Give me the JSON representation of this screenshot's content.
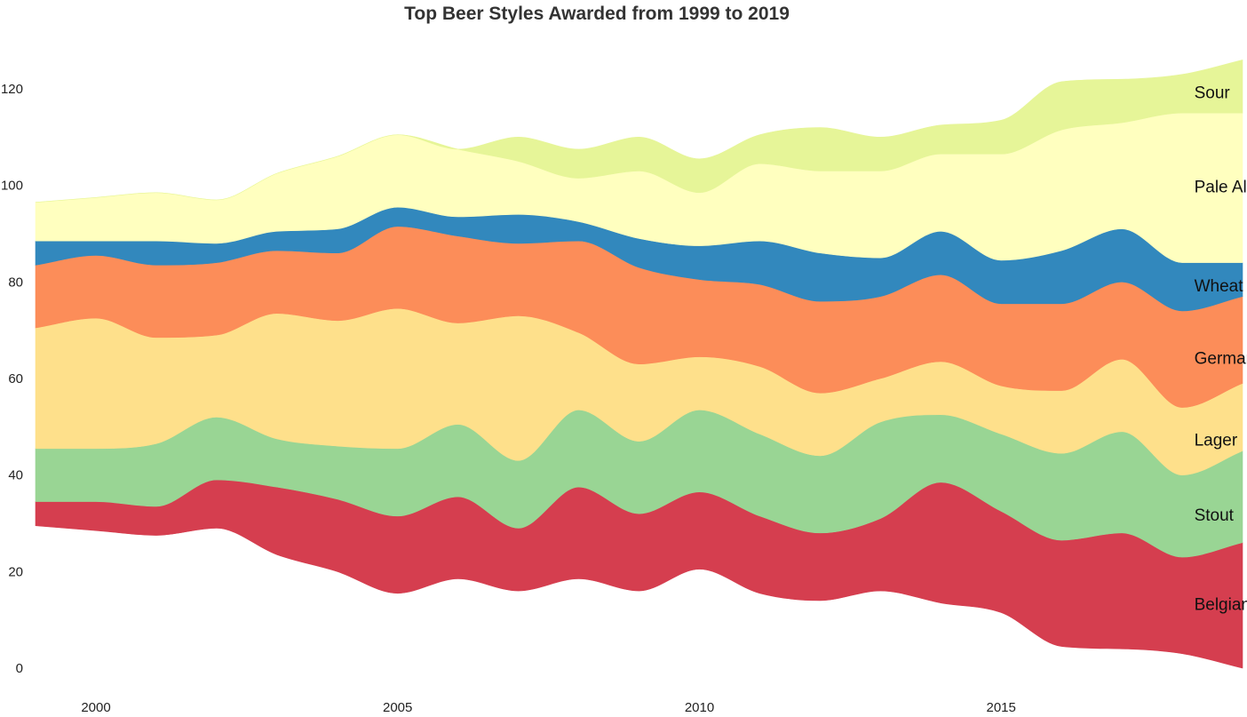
{
  "chart_data": {
    "type": "area",
    "stacked": true,
    "smoothed": true,
    "title": "Top Beer Styles Awarded from 1999 to 2019",
    "xlabel": "",
    "ylabel": "",
    "x": [
      1999,
      2000,
      2001,
      2002,
      2003,
      2004,
      2005,
      2006,
      2007,
      2008,
      2009,
      2010,
      2011,
      2012,
      2013,
      2014,
      2015,
      2016,
      2017,
      2018,
      2019
    ],
    "xlim": [
      1999,
      2019
    ],
    "ylim": [
      0,
      127
    ],
    "x_ticks": [
      2000,
      2005,
      2010,
      2015
    ],
    "y_ticks": [
      0,
      20,
      40,
      60,
      80,
      100,
      120
    ],
    "grid": false,
    "legend": "labels inside areas at right edge",
    "baseline": [
      29.5,
      28.5,
      27.5,
      29,
      23.5,
      20,
      15.5,
      18.5,
      16,
      18.5,
      16,
      20.5,
      15.5,
      14,
      16,
      13.5,
      11.5,
      4.5,
      4,
      3,
      0
    ],
    "series": [
      {
        "name": "Belgian",
        "color": "#d53e4f",
        "values": [
          5,
          6,
          6,
          10,
          14,
          15,
          16,
          17,
          13,
          19,
          16,
          16,
          16,
          14,
          15,
          25,
          21,
          22,
          24,
          20,
          26
        ]
      },
      {
        "name": "Stout",
        "color": "#99d594",
        "values": [
          11,
          11,
          13,
          13,
          10,
          11,
          14,
          15,
          14,
          16,
          15,
          17,
          17,
          16,
          20,
          14,
          16,
          18,
          21,
          17,
          19
        ]
      },
      {
        "name": "Lager",
        "color": "#fee08b",
        "values": [
          25,
          27,
          22,
          17,
          26,
          26,
          29,
          21,
          30,
          16,
          16,
          11,
          14,
          13,
          9,
          11,
          10,
          13,
          15,
          14,
          14
        ]
      },
      {
        "name": "German",
        "color": "#fc8d59",
        "values": [
          13,
          13,
          15,
          15,
          13,
          14,
          17,
          18,
          15,
          19,
          20,
          16,
          17,
          19,
          17,
          18,
          17,
          18,
          16,
          20,
          18
        ]
      },
      {
        "name": "Wheat",
        "color": "#3288bd",
        "values": [
          5,
          3,
          5,
          4,
          4,
          5,
          4,
          4,
          6,
          4,
          6,
          7,
          9,
          10,
          8,
          9,
          9,
          11,
          11,
          10,
          7
        ]
      },
      {
        "name": "Pale Ale",
        "color": "#ffffbf",
        "values": [
          8,
          9,
          10,
          9,
          12,
          15,
          15,
          14,
          11,
          9,
          14,
          11,
          16,
          17,
          18,
          16,
          22,
          25,
          22,
          31,
          31
        ]
      },
      {
        "name": "Sour",
        "color": "#e6f598",
        "values": [
          0,
          0,
          0,
          0,
          0,
          0,
          0,
          0,
          5,
          6,
          7,
          7,
          6,
          9,
          7,
          6,
          7,
          10,
          9,
          8,
          11
        ]
      }
    ],
    "label_x": 2018.2
  }
}
